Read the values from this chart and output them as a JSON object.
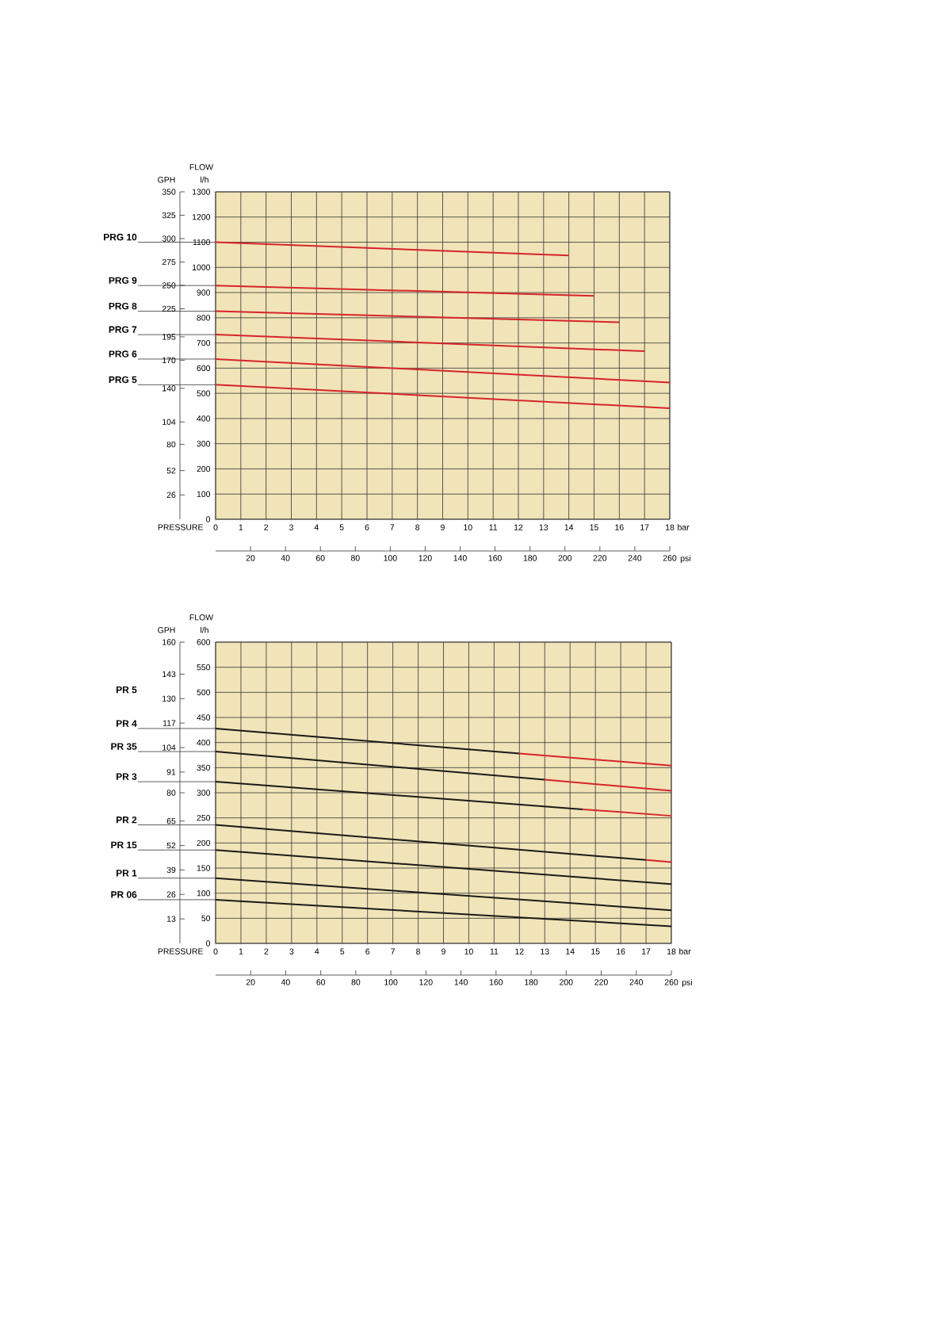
{
  "chart_data": [
    {
      "type": "line",
      "xlabel": "PRESSURE",
      "x2label": "psi",
      "ylabel": "FLOW",
      "y2label": "GPH",
      "annotations": [
        "l/h",
        "bar"
      ],
      "grid": true,
      "xlim": [
        0,
        18
      ],
      "xticks": [
        0,
        1,
        2,
        3,
        4,
        5,
        6,
        7,
        8,
        9,
        10,
        11,
        12,
        13,
        14,
        15,
        16,
        17,
        18
      ],
      "ylim": [
        0,
        1300
      ],
      "yticks": [
        0,
        100,
        200,
        300,
        400,
        500,
        600,
        700,
        800,
        900,
        1000,
        1100,
        1200,
        1300
      ],
      "y2lim": [
        0,
        350
      ],
      "y2ticks": [
        26,
        52,
        80,
        104,
        140,
        170,
        195,
        225,
        250,
        275,
        300,
        325,
        350
      ],
      "x2lim": [
        0,
        260
      ],
      "x2ticks": [
        20,
        40,
        60,
        80,
        100,
        120,
        140,
        160,
        180,
        200,
        220,
        240,
        260
      ],
      "series": [
        {
          "name": "PRG 10",
          "color": "#d7242b",
          "x": [
            0,
            14
          ],
          "values": [
            1100,
            1047
          ]
        },
        {
          "name": "PRG 9",
          "color": "#d7242b",
          "x": [
            0,
            15
          ],
          "values": [
            928,
            887
          ]
        },
        {
          "name": "PRG 8",
          "color": "#d7242b",
          "x": [
            0,
            16
          ],
          "values": [
            826,
            782
          ]
        },
        {
          "name": "PRG 7",
          "color": "#d7242b",
          "x": [
            0,
            17
          ],
          "values": [
            733,
            667
          ]
        },
        {
          "name": "PRG 6",
          "color": "#d7242b",
          "x": [
            0,
            18
          ],
          "values": [
            636,
            543
          ]
        },
        {
          "name": "PRG 5",
          "color": "#d7242b",
          "x": [
            0,
            18
          ],
          "values": [
            534,
            441
          ]
        }
      ]
    },
    {
      "type": "line",
      "xlabel": "PRESSURE",
      "x2label": "psi",
      "ylabel": "FLOW",
      "y2label": "GPH",
      "annotations": [
        "l/h",
        "bar",
        "PR 5"
      ],
      "grid": true,
      "xlim": [
        0,
        18
      ],
      "xticks": [
        0,
        1,
        2,
        3,
        4,
        5,
        6,
        7,
        8,
        9,
        10,
        11,
        12,
        13,
        14,
        15,
        16,
        17,
        18
      ],
      "ylim": [
        0,
        600
      ],
      "yticks": [
        0,
        50,
        100,
        150,
        200,
        250,
        300,
        350,
        400,
        450,
        500,
        550,
        600
      ],
      "y2lim": [
        0,
        160
      ],
      "y2ticks": [
        13,
        26,
        39,
        52,
        65,
        80,
        91,
        104,
        117,
        130,
        143,
        160
      ],
      "x2lim": [
        0,
        260
      ],
      "x2ticks": [
        20,
        40,
        60,
        80,
        100,
        120,
        140,
        160,
        180,
        200,
        220,
        240,
        260
      ],
      "series": [
        {
          "name": "PR 4",
          "color": "#1a1a1a",
          "x": [
            0,
            12
          ],
          "values": [
            428,
            378
          ]
        },
        {
          "color": "#d7242b",
          "x": [
            12,
            18
          ],
          "values": [
            378,
            354
          ]
        },
        {
          "name": "PR 35",
          "color": "#1a1a1a",
          "x": [
            0,
            13
          ],
          "values": [
            382,
            326
          ]
        },
        {
          "color": "#d7242b",
          "x": [
            13,
            18
          ],
          "values": [
            326,
            304
          ]
        },
        {
          "name": "PR 3",
          "color": "#1a1a1a",
          "x": [
            0,
            14.5
          ],
          "values": [
            322,
            267
          ]
        },
        {
          "color": "#d7242b",
          "x": [
            14.5,
            18
          ],
          "values": [
            267,
            254
          ]
        },
        {
          "name": "PR 2",
          "color": "#1a1a1a",
          "x": [
            0,
            17
          ],
          "values": [
            236,
            166
          ]
        },
        {
          "color": "#d7242b",
          "x": [
            17,
            18
          ],
          "values": [
            166,
            162
          ]
        },
        {
          "name": "PR 15",
          "color": "#1a1a1a",
          "x": [
            0,
            18
          ],
          "values": [
            186,
            118
          ]
        },
        {
          "name": "PR 1",
          "color": "#1a1a1a",
          "x": [
            0,
            18
          ],
          "values": [
            130,
            66
          ]
        },
        {
          "name": "PR 06",
          "color": "#1a1a1a",
          "x": [
            0,
            18
          ],
          "values": [
            87,
            34
          ]
        }
      ]
    }
  ]
}
